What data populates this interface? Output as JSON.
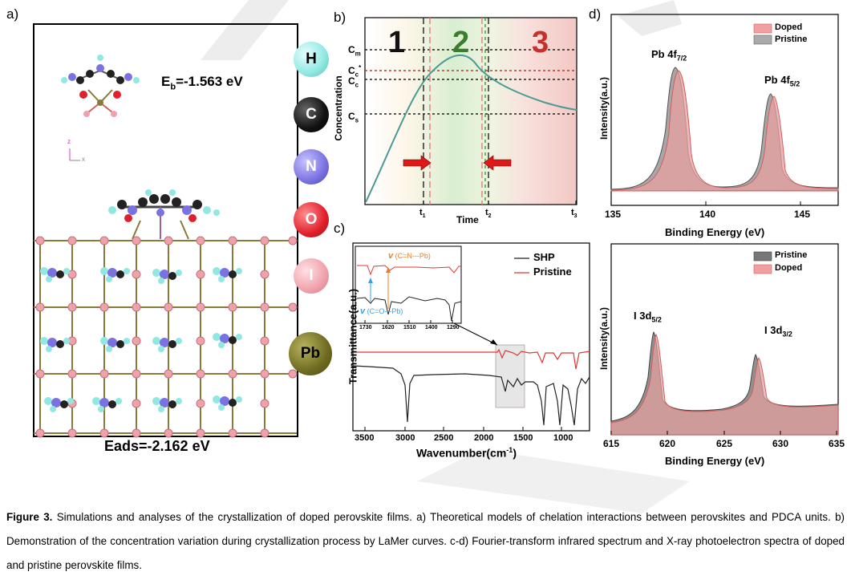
{
  "panel_a": {
    "label": "a)",
    "eb": "E",
    "eb_sub": "b",
    "eb_val": "=-1.563 eV",
    "eads": "Eads=-2.162 eV",
    "axis_z": "z",
    "axis_x": "x",
    "legend": [
      {
        "symbol": "H",
        "color": "#8fe8e2",
        "text": "#000"
      },
      {
        "symbol": "C",
        "color": "#111111",
        "text": "#fff"
      },
      {
        "symbol": "N",
        "color": "#7a72e0",
        "text": "#fff"
      },
      {
        "symbol": "O",
        "color": "#e0202c",
        "text": "#fff"
      },
      {
        "symbol": "I",
        "color": "#f0a2ac",
        "text": "#fff"
      },
      {
        "symbol": "Pb",
        "color": "#6e6b20",
        "text": "#000"
      }
    ]
  },
  "panel_b": {
    "label": "b)",
    "ylabel": "Concentration",
    "xlabel": "Time",
    "regions": [
      "1",
      "2",
      "3"
    ],
    "region_colors": [
      "#111111",
      "#3a7d2e",
      "#c8312b"
    ],
    "ylevels": [
      {
        "name": "C",
        "sub": "m"
      },
      {
        "name": "C",
        "sub": "c",
        "sup": "*"
      },
      {
        "name": "C",
        "sub": "c"
      },
      {
        "name": "C",
        "sub": "s"
      }
    ],
    "xticks": [
      {
        "name": "t",
        "sub": "1"
      },
      {
        "name": "t",
        "sub": "2"
      },
      {
        "name": "t",
        "sub": "3"
      }
    ]
  },
  "panel_c": {
    "label": "c)",
    "xlabel": "Wavenumber(cm",
    "xlabel_sup": "-1",
    "xlabel_end": ")",
    "ylabel": "Transmittance(a.u.)",
    "legend": [
      {
        "name": "SHP",
        "color": "#222222"
      },
      {
        "name": "Pristine",
        "color": "#e03535"
      }
    ],
    "xticks": [
      "3500",
      "3000",
      "2500",
      "2000",
      "1500",
      "1000"
    ],
    "inset_xticks": [
      "1730",
      "1620",
      "1510",
      "1400",
      "1290"
    ],
    "inset_top": "(C=N---Pb)",
    "inset_bottom": "(C=O---Pb)",
    "nu": "v"
  },
  "panel_d": {
    "label": "d)",
    "top": {
      "legend": [
        {
          "name": "Doped",
          "color": "#f0a0a0"
        },
        {
          "name": "Pristine",
          "color": "#aaaaaa"
        }
      ],
      "peak1": "Pb 4f",
      "peak1_sub": "7/2",
      "peak2": "Pb 4f",
      "peak2_sub": "5/2",
      "xticks": [
        "135",
        "140",
        "145"
      ],
      "xlabel": "Binding Energy (eV)",
      "ylabel": "Intensity(a.u.)"
    },
    "bottom": {
      "legend": [
        {
          "name": "Pristine",
          "color": "#777777"
        },
        {
          "name": "Doped",
          "color": "#f0a0a0"
        }
      ],
      "peak1": "I 3d",
      "peak1_sub": "5/2",
      "peak2": "I 3d",
      "peak2_sub": "3/2",
      "xticks": [
        "615",
        "620",
        "625",
        "630",
        "635"
      ],
      "xlabel": "Binding Energy (eV)",
      "ylabel": "Intensity(a.u.)"
    }
  },
  "caption": {
    "fig": "Figure 3.",
    "text": " Simulations and analyses of the crystallization of doped perovskite films. a) Theoretical models of chelation interactions between perovskites and PDCA units. b) Demonstration of the concentration variation during crystallization process by LaMer curves. c-d) Fourier-transform infrared spectrum and X-ray photoelectron spectra of doped and pristine perovskite films."
  }
}
